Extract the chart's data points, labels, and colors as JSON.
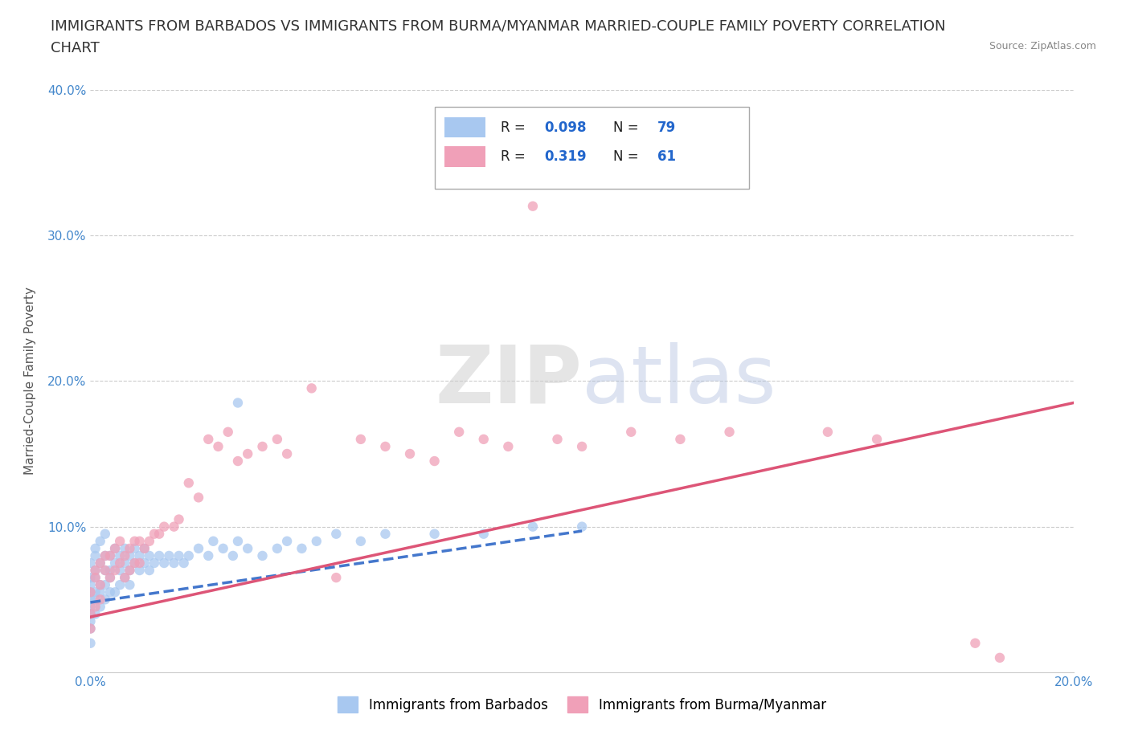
{
  "title_line1": "IMMIGRANTS FROM BARBADOS VS IMMIGRANTS FROM BURMA/MYANMAR MARRIED-COUPLE FAMILY POVERTY CORRELATION",
  "title_line2": "CHART",
  "source": "Source: ZipAtlas.com",
  "ylabel": "Married-Couple Family Poverty",
  "x_min": 0.0,
  "x_max": 0.2,
  "y_min": 0.0,
  "y_max": 0.4,
  "x_ticks": [
    0.0,
    0.05,
    0.1,
    0.15,
    0.2
  ],
  "x_tick_labels": [
    "0.0%",
    "",
    "",
    "",
    "20.0%"
  ],
  "y_ticks": [
    0.0,
    0.1,
    0.2,
    0.3,
    0.4
  ],
  "y_tick_labels": [
    "",
    "10.0%",
    "20.0%",
    "30.0%",
    "40.0%"
  ],
  "barbados_color": "#a8c8f0",
  "burma_color": "#f0a0b8",
  "barbados_line_color": "#4477cc",
  "burma_line_color": "#dd5577",
  "title_fontsize": 13,
  "axis_label_fontsize": 11,
  "tick_fontsize": 11,
  "barbados_line_x0": 0.0,
  "barbados_line_y0": 0.048,
  "barbados_line_x1": 0.1,
  "barbados_line_y1": 0.097,
  "burma_line_x0": 0.0,
  "burma_line_y0": 0.038,
  "burma_line_x1": 0.2,
  "burma_line_y1": 0.185,
  "barbados_x": [
    0.0,
    0.0,
    0.0,
    0.0,
    0.0,
    0.0,
    0.0,
    0.0,
    0.0,
    0.0,
    0.001,
    0.001,
    0.001,
    0.001,
    0.001,
    0.001,
    0.001,
    0.002,
    0.002,
    0.002,
    0.002,
    0.002,
    0.003,
    0.003,
    0.003,
    0.003,
    0.003,
    0.004,
    0.004,
    0.004,
    0.004,
    0.005,
    0.005,
    0.005,
    0.006,
    0.006,
    0.006,
    0.007,
    0.007,
    0.007,
    0.008,
    0.008,
    0.008,
    0.009,
    0.009,
    0.01,
    0.01,
    0.011,
    0.011,
    0.012,
    0.012,
    0.013,
    0.014,
    0.015,
    0.016,
    0.017,
    0.018,
    0.019,
    0.02,
    0.022,
    0.024,
    0.025,
    0.027,
    0.029,
    0.03,
    0.032,
    0.035,
    0.038,
    0.04,
    0.043,
    0.046,
    0.05,
    0.055,
    0.06,
    0.07,
    0.08,
    0.09,
    0.1,
    0.03
  ],
  "barbados_y": [
    0.03,
    0.045,
    0.06,
    0.075,
    0.05,
    0.035,
    0.02,
    0.055,
    0.04,
    0.065,
    0.08,
    0.055,
    0.04,
    0.065,
    0.085,
    0.05,
    0.07,
    0.06,
    0.075,
    0.045,
    0.09,
    0.055,
    0.07,
    0.08,
    0.05,
    0.06,
    0.095,
    0.07,
    0.08,
    0.055,
    0.065,
    0.075,
    0.085,
    0.055,
    0.07,
    0.08,
    0.06,
    0.075,
    0.085,
    0.065,
    0.07,
    0.08,
    0.06,
    0.075,
    0.085,
    0.07,
    0.08,
    0.075,
    0.085,
    0.07,
    0.08,
    0.075,
    0.08,
    0.075,
    0.08,
    0.075,
    0.08,
    0.075,
    0.08,
    0.085,
    0.08,
    0.09,
    0.085,
    0.08,
    0.09,
    0.085,
    0.08,
    0.085,
    0.09,
    0.085,
    0.09,
    0.095,
    0.09,
    0.095,
    0.095,
    0.095,
    0.1,
    0.1,
    0.185
  ],
  "burma_x": [
    0.0,
    0.0,
    0.0,
    0.001,
    0.001,
    0.001,
    0.002,
    0.002,
    0.002,
    0.003,
    0.003,
    0.004,
    0.004,
    0.005,
    0.005,
    0.006,
    0.006,
    0.007,
    0.007,
    0.008,
    0.008,
    0.009,
    0.009,
    0.01,
    0.01,
    0.011,
    0.012,
    0.013,
    0.014,
    0.015,
    0.017,
    0.018,
    0.02,
    0.022,
    0.024,
    0.026,
    0.028,
    0.03,
    0.032,
    0.035,
    0.038,
    0.04,
    0.045,
    0.05,
    0.055,
    0.06,
    0.065,
    0.07,
    0.075,
    0.08,
    0.085,
    0.09,
    0.095,
    0.1,
    0.11,
    0.12,
    0.13,
    0.15,
    0.16,
    0.18,
    0.185
  ],
  "burma_y": [
    0.03,
    0.055,
    0.04,
    0.065,
    0.045,
    0.07,
    0.06,
    0.075,
    0.05,
    0.07,
    0.08,
    0.065,
    0.08,
    0.07,
    0.085,
    0.075,
    0.09,
    0.065,
    0.08,
    0.07,
    0.085,
    0.075,
    0.09,
    0.075,
    0.09,
    0.085,
    0.09,
    0.095,
    0.095,
    0.1,
    0.1,
    0.105,
    0.13,
    0.12,
    0.16,
    0.155,
    0.165,
    0.145,
    0.15,
    0.155,
    0.16,
    0.15,
    0.195,
    0.065,
    0.16,
    0.155,
    0.15,
    0.145,
    0.165,
    0.16,
    0.155,
    0.32,
    0.16,
    0.155,
    0.165,
    0.16,
    0.165,
    0.165,
    0.16,
    0.02,
    0.01
  ]
}
